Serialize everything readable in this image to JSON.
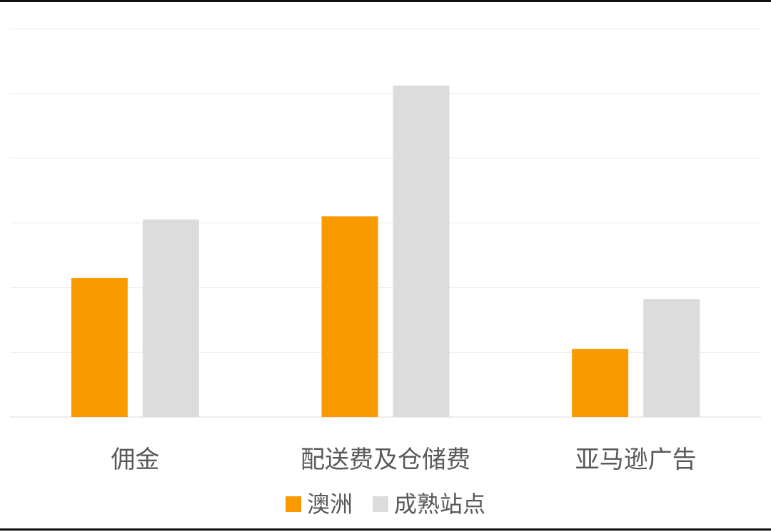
{
  "chart_data": {
    "type": "bar",
    "categories": [
      "佣金",
      "配送费及仓储费",
      "亚马逊广告"
    ],
    "series": [
      {
        "name": "澳洲",
        "color": "#f99b00",
        "values": [
          2.15,
          3.1,
          1.05
        ]
      },
      {
        "name": "成熟站点",
        "color": "#dcdcdc",
        "values": [
          3.05,
          5.12,
          1.82
        ]
      }
    ],
    "ylim": [
      0,
      6
    ],
    "grid": true,
    "legend_position": "bottom"
  }
}
